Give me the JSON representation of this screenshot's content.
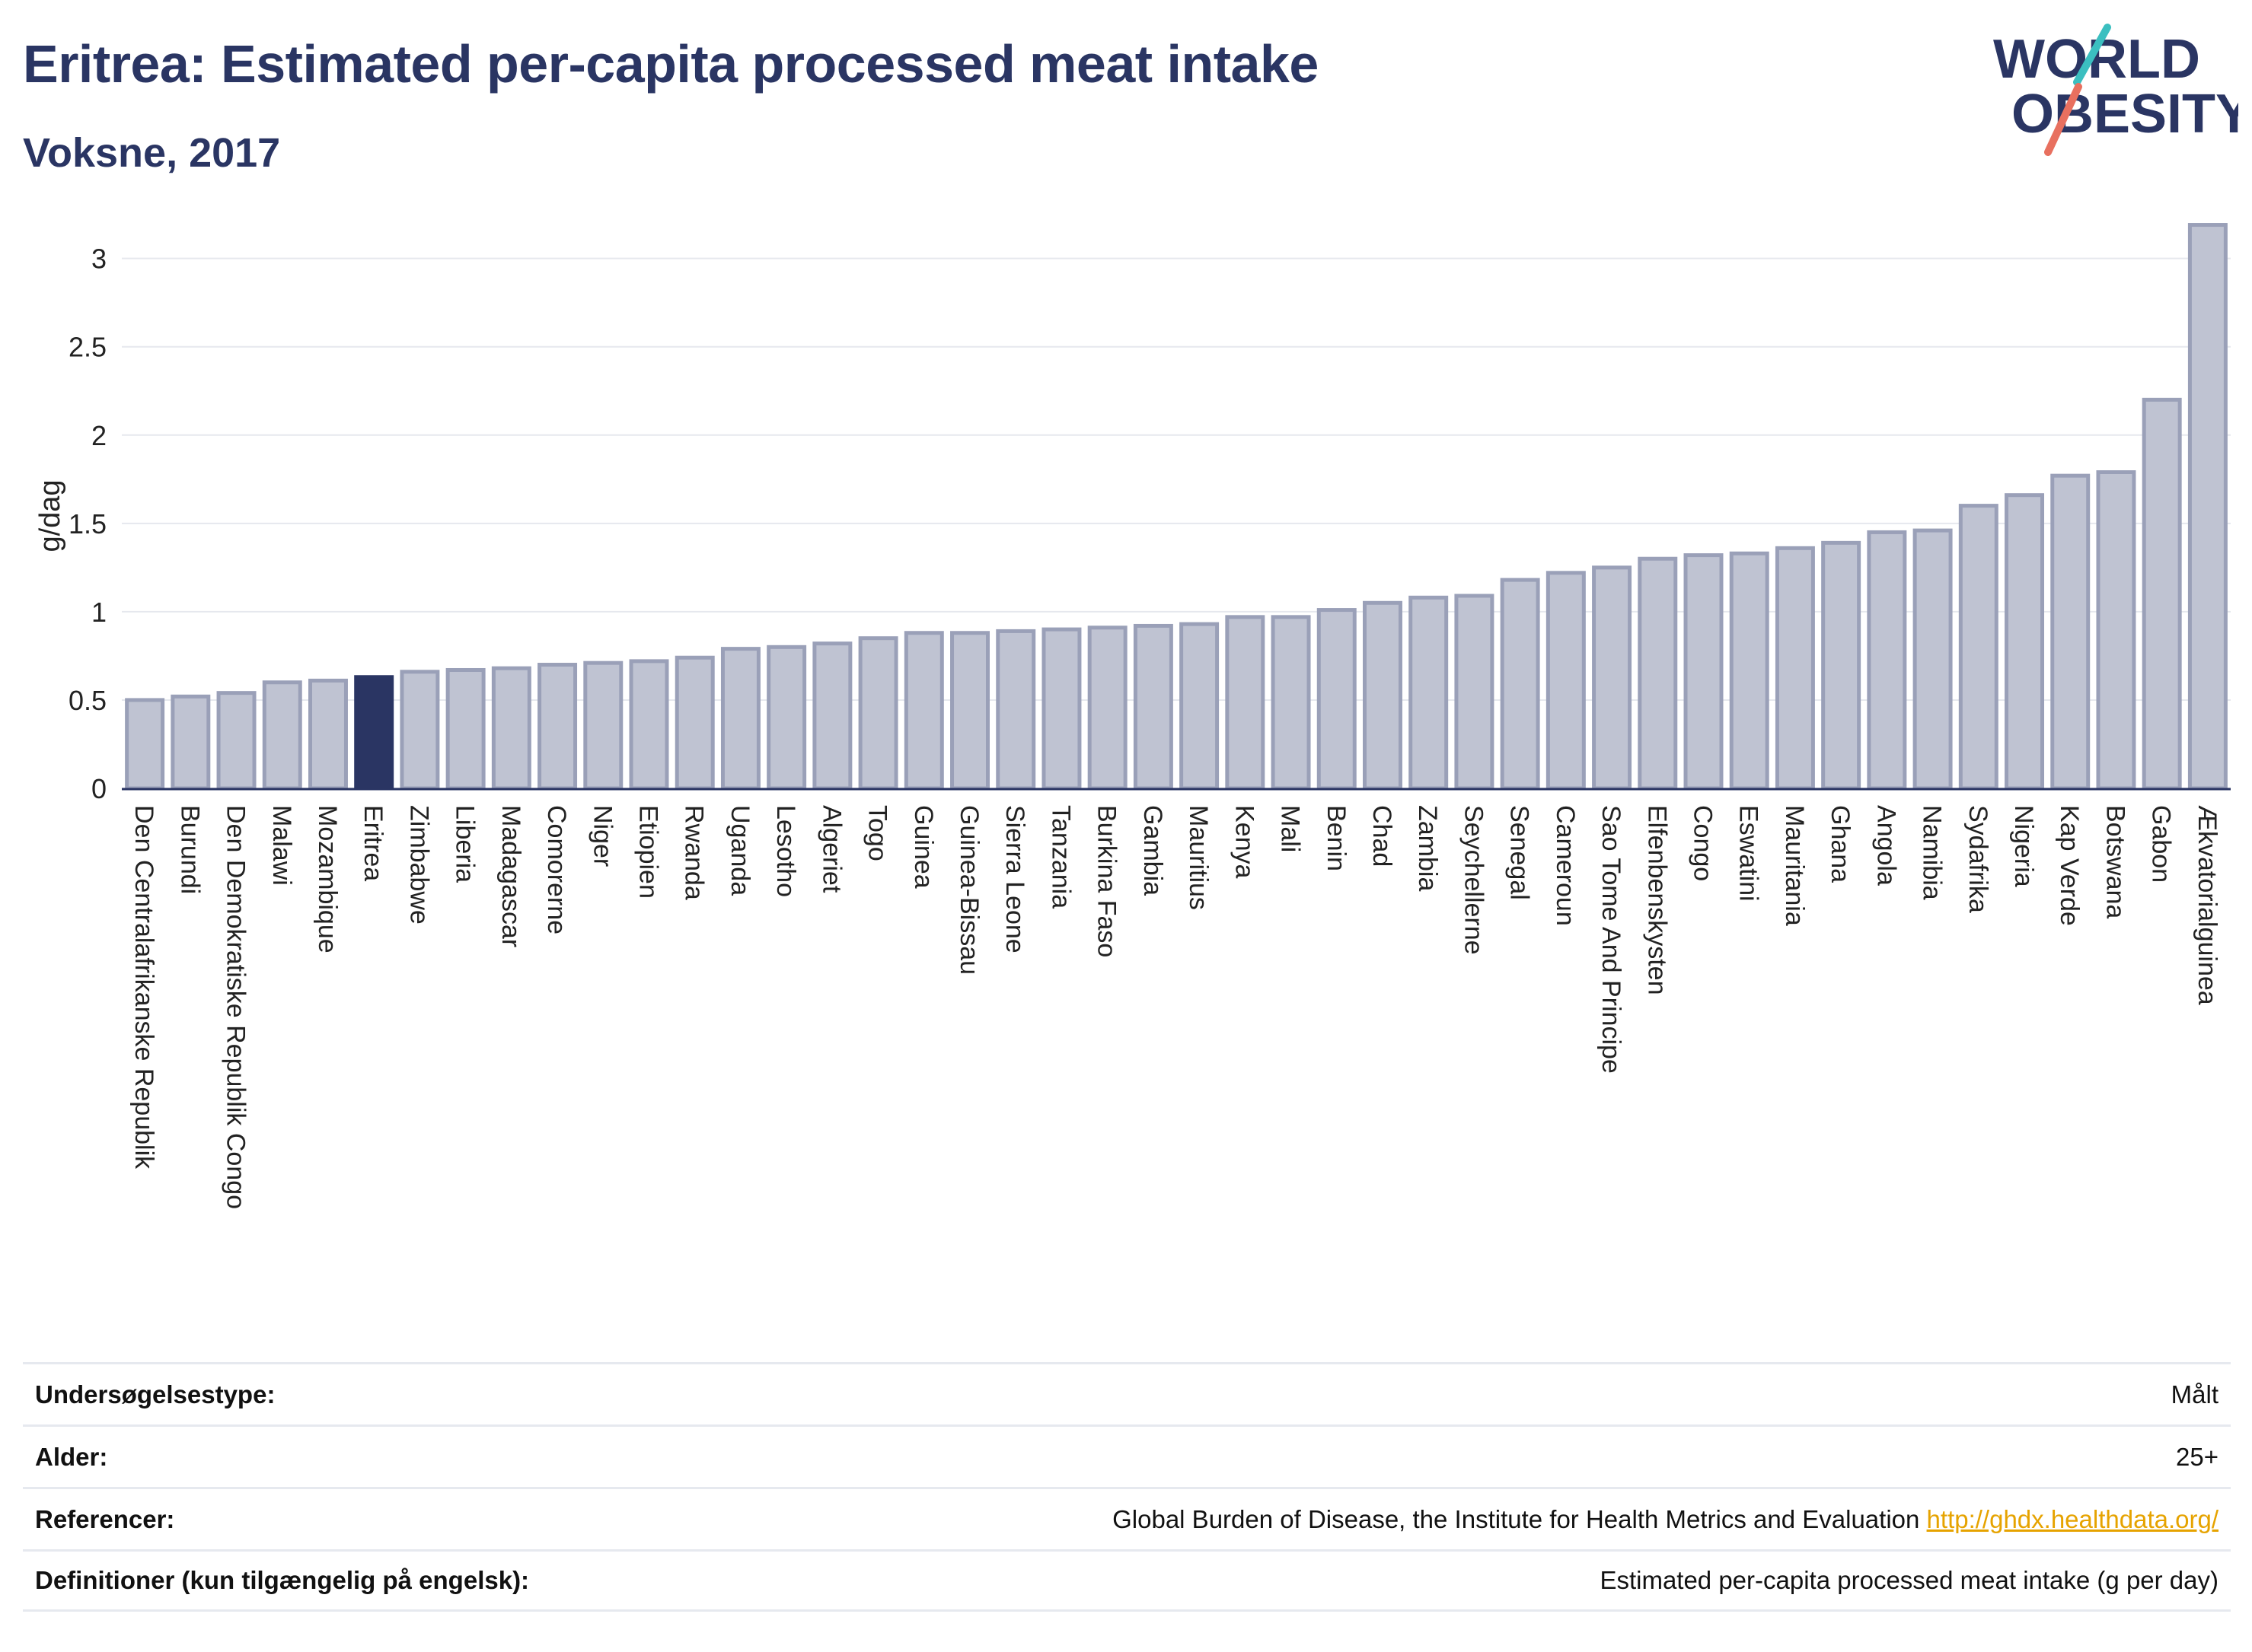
{
  "header": {
    "title": "Eritrea: Estimated per-capita processed meat intake",
    "subtitle": "Voksne, 2017"
  },
  "logo": {
    "line1": "WORLD",
    "line2": "OBESITY",
    "colors": {
      "text": "#2a3563",
      "teal": "#3bbfc0",
      "coral": "#e8705f"
    }
  },
  "chart_data": {
    "type": "bar",
    "ylabel": "g/dag",
    "ylim": [
      0,
      3.3
    ],
    "yticks": [
      0,
      0.5,
      1,
      1.5,
      2,
      2.5,
      3
    ],
    "grid": true,
    "highlight": "Eritrea",
    "colors": {
      "bar": "#bfc3d2",
      "bar_border": "#9aa0b8",
      "highlight": "#2a3563"
    },
    "categories": [
      "Den Centralafrikanske Republik",
      "Burundi",
      "Den Demokratiske Republik Congo",
      "Malawi",
      "Mozambique",
      "Eritrea",
      "Zimbabwe",
      "Liberia",
      "Madagascar",
      "Comorerne",
      "Niger",
      "Etiopien",
      "Rwanda",
      "Uganda",
      "Lesotho",
      "Algeriet",
      "Togo",
      "Guinea",
      "Guinea-Bissau",
      "Sierra Leone",
      "Tanzania",
      "Burkina Faso",
      "Gambia",
      "Mauritius",
      "Kenya",
      "Mali",
      "Benin",
      "Chad",
      "Zambia",
      "Seychellerne",
      "Senegal",
      "Cameroun",
      "Sao Tome And Principe",
      "Elfenbenskysten",
      "Congo",
      "Eswatini",
      "Mauritania",
      "Ghana",
      "Angola",
      "Namibia",
      "Sydafrika",
      "Nigeria",
      "Kap Verde",
      "Botswana",
      "Gabon",
      "Ækvatorialguinea"
    ],
    "values": [
      0.5,
      0.52,
      0.54,
      0.6,
      0.61,
      0.63,
      0.66,
      0.67,
      0.68,
      0.7,
      0.71,
      0.72,
      0.74,
      0.79,
      0.8,
      0.82,
      0.85,
      0.88,
      0.88,
      0.89,
      0.9,
      0.91,
      0.92,
      0.93,
      0.97,
      0.97,
      1.01,
      1.05,
      1.08,
      1.09,
      1.18,
      1.22,
      1.25,
      1.3,
      1.32,
      1.33,
      1.36,
      1.39,
      1.45,
      1.46,
      1.6,
      1.66,
      1.77,
      1.79,
      2.2,
      3.19
    ]
  },
  "info_table": {
    "rows": [
      {
        "label": "Undersøgelsestype:",
        "value": "Målt"
      },
      {
        "label": "Alder:",
        "value": "25+"
      },
      {
        "label": "Referencer:",
        "value": "Global Burden of Disease, the Institute for Health Metrics and Evaluation",
        "link": "http://ghdx.healthdata.org/"
      },
      {
        "label": "Definitioner (kun tilgængelig på engelsk):",
        "value": "Estimated per-capita processed meat intake (g per day)"
      }
    ]
  }
}
